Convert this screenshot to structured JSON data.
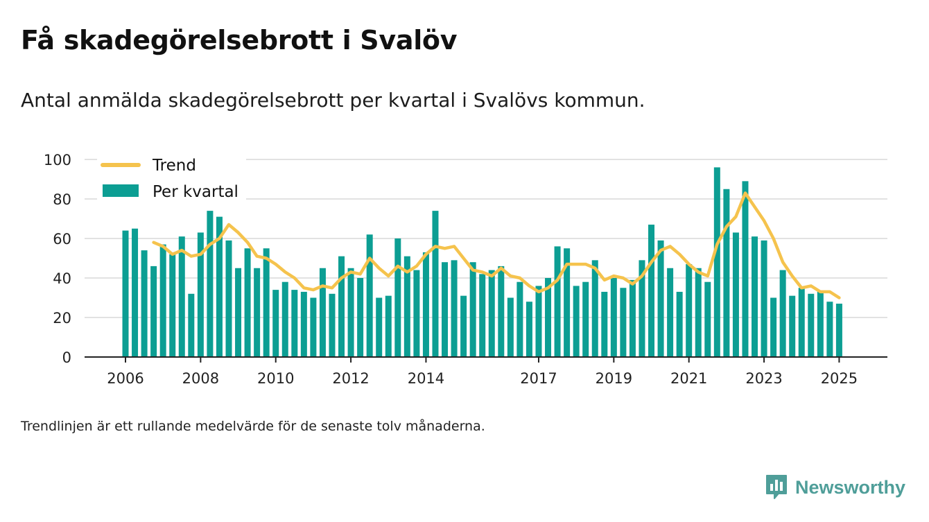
{
  "title": "Få skadegörelsebrott i Svalöv",
  "subtitle": "Antal anmälda skadegörelsebrott per kvartal i Svalövs kommun.",
  "note": "Trendlinjen är ett rullande medelvärde för de senaste tolv månaderna.",
  "brand": {
    "name": "Newsworthy",
    "icon": "newsworthy-logo-icon"
  },
  "colors": {
    "bar": "#0c9e93",
    "trend": "#f5c34d",
    "grid": "#d9d9d9",
    "axis": "#222222",
    "brand": "#4f9e99"
  },
  "chart_data": {
    "type": "bar",
    "title": "Få skadegörelsebrott i Svalöv",
    "xlabel": "",
    "ylabel": "",
    "ylim": [
      0,
      100
    ],
    "y_ticks": [
      0,
      20,
      40,
      60,
      80,
      100
    ],
    "x_ticks": [
      {
        "label": "2006",
        "year": 2006
      },
      {
        "label": "2008",
        "year": 2008
      },
      {
        "label": "2010",
        "year": 2010
      },
      {
        "label": "2012",
        "year": 2012
      },
      {
        "label": "2014",
        "year": 2014
      },
      {
        "label": "2017",
        "year": 2017
      },
      {
        "label": "2019",
        "year": 2019
      },
      {
        "label": "2021",
        "year": 2021
      },
      {
        "label": "2023",
        "year": 2023
      },
      {
        "label": "2025",
        "year": 2025
      }
    ],
    "grid": true,
    "legend": {
      "placement": "top-left",
      "entries": [
        "Trend",
        "Per kvartal"
      ]
    },
    "periods": [
      "2006 Q1",
      "2006 Q2",
      "2006 Q3",
      "2006 Q4",
      "2007 Q1",
      "2007 Q2",
      "2007 Q3",
      "2007 Q4",
      "2008 Q1",
      "2008 Q2",
      "2008 Q3",
      "2008 Q4",
      "2009 Q1",
      "2009 Q2",
      "2009 Q3",
      "2009 Q4",
      "2010 Q1",
      "2010 Q2",
      "2010 Q3",
      "2010 Q4",
      "2011 Q1",
      "2011 Q2",
      "2011 Q3",
      "2011 Q4",
      "2012 Q1",
      "2012 Q2",
      "2012 Q3",
      "2012 Q4",
      "2013 Q1",
      "2013 Q2",
      "2013 Q3",
      "2013 Q4",
      "2014 Q1",
      "2014 Q2",
      "2014 Q3",
      "2014 Q4",
      "2015 Q1",
      "2015 Q2",
      "2015 Q3",
      "2015 Q4",
      "2016 Q1",
      "2016 Q2",
      "2016 Q3",
      "2016 Q4",
      "2017 Q1",
      "2017 Q2",
      "2017 Q3",
      "2017 Q4",
      "2018 Q1",
      "2018 Q2",
      "2018 Q3",
      "2018 Q4",
      "2019 Q1",
      "2019 Q2",
      "2019 Q3",
      "2019 Q4",
      "2020 Q1",
      "2020 Q2",
      "2020 Q3",
      "2020 Q4",
      "2021 Q1",
      "2021 Q2",
      "2021 Q3",
      "2021 Q4",
      "2022 Q1",
      "2022 Q2",
      "2022 Q3",
      "2022 Q4",
      "2023 Q1",
      "2023 Q2",
      "2023 Q3",
      "2023 Q4",
      "2024 Q1",
      "2024 Q2",
      "2024 Q3",
      "2024 Q4",
      "2025 Q1"
    ],
    "series": [
      {
        "name": "Per kvartal",
        "type": "bar",
        "values": [
          64,
          65,
          54,
          46,
          57,
          52,
          61,
          32,
          63,
          74,
          71,
          59,
          45,
          55,
          45,
          55,
          34,
          38,
          34,
          33,
          30,
          45,
          32,
          51,
          45,
          40,
          62,
          30,
          31,
          60,
          51,
          44,
          53,
          74,
          48,
          49,
          31,
          48,
          42,
          44,
          46,
          30,
          38,
          28,
          36,
          40,
          56,
          55,
          36,
          38,
          49,
          33,
          40,
          35,
          39,
          49,
          67,
          59,
          45,
          33,
          47,
          45,
          38,
          96,
          85,
          63,
          89,
          61,
          59,
          30,
          44,
          31,
          35,
          32,
          33,
          28,
          27
        ]
      },
      {
        "name": "Trend",
        "type": "line",
        "values": [
          null,
          null,
          null,
          58,
          56,
          52,
          54,
          51,
          52,
          57,
          60,
          67,
          63,
          58,
          51,
          50,
          47,
          43,
          40,
          35,
          34,
          36,
          35,
          40,
          43,
          42,
          50,
          45,
          41,
          46,
          43,
          46,
          52,
          56,
          55,
          56,
          50,
          44,
          43,
          41,
          45,
          41,
          40,
          36,
          33,
          35,
          39,
          47,
          47,
          47,
          45,
          39,
          41,
          40,
          37,
          41,
          48,
          54,
          56,
          52,
          47,
          43,
          41,
          57,
          66,
          71,
          83,
          76,
          69,
          60,
          48,
          41,
          35,
          36,
          33,
          33,
          30
        ]
      }
    ]
  }
}
